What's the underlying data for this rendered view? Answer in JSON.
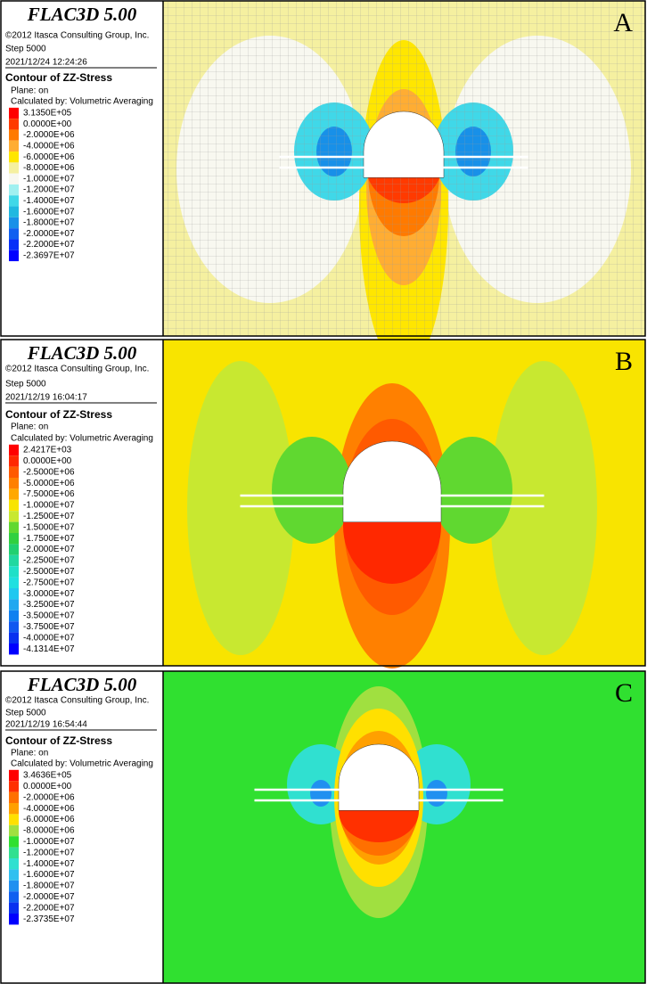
{
  "panels": [
    {
      "letter": "A",
      "title": "FLAC3D 5.00",
      "copyright": "©2012 Itasca Consulting Group, Inc.",
      "step": "Step 5000",
      "timestamp": "2021/12/24 12:24:26",
      "contour_title": "Contour of ZZ-Stress",
      "plane": "Plane: on",
      "calculated_by": "Calculated by: Volumetric Averaging",
      "legend": [
        {
          "label": "3.1350E+05",
          "color": "#ff0000"
        },
        {
          "label": "0.0000E+00",
          "color": "#ff3a00"
        },
        {
          "label": "-2.0000E+06",
          "color": "#ff7a00"
        },
        {
          "label": "-4.0000E+06",
          "color": "#ffad33"
        },
        {
          "label": "-6.0000E+06",
          "color": "#ffe600"
        },
        {
          "label": "-8.0000E+06",
          "color": "#f5f0a0"
        },
        {
          "label": "-1.0000E+07",
          "color": "#f8f8f0"
        },
        {
          "label": "-1.2000E+07",
          "color": "#a0f0f0"
        },
        {
          "label": "-1.4000E+07",
          "color": "#40d8e8"
        },
        {
          "label": "-1.6000E+07",
          "color": "#20b8e0"
        },
        {
          "label": "-1.8000E+07",
          "color": "#1890e8"
        },
        {
          "label": "-2.0000E+07",
          "color": "#1060f0"
        },
        {
          "label": "-2.2000E+07",
          "color": "#0830f8"
        },
        {
          "label": "-2.3697E+07",
          "color": "#0000ff"
        }
      ]
    },
    {
      "letter": "B",
      "title": "FLAC3D 5.00",
      "copyright": "©2012 Itasca Consulting Group, Inc.",
      "step": "Step 5000",
      "timestamp": "2021/12/19 16:04:17",
      "contour_title": "Contour of ZZ-Stress",
      "plane": "Plane: on",
      "calculated_by": "Calculated by: Volumetric Averaging",
      "legend": [
        {
          "label": "2.4217E+03",
          "color": "#ff0000"
        },
        {
          "label": "0.0000E+00",
          "color": "#ff2800"
        },
        {
          "label": "-2.5000E+06",
          "color": "#ff5a00"
        },
        {
          "label": "-5.0000E+06",
          "color": "#ff8000"
        },
        {
          "label": "-7.5000E+06",
          "color": "#ffa800"
        },
        {
          "label": "-1.0000E+07",
          "color": "#f8e400"
        },
        {
          "label": "-1.2500E+07",
          "color": "#c8e830"
        },
        {
          "label": "-1.5000E+07",
          "color": "#60d830"
        },
        {
          "label": "-1.7500E+07",
          "color": "#30d040"
        },
        {
          "label": "-2.0000E+07",
          "color": "#20d070"
        },
        {
          "label": "-2.2500E+07",
          "color": "#20d8a0"
        },
        {
          "label": "-2.5000E+07",
          "color": "#20e0c8"
        },
        {
          "label": "-2.7500E+07",
          "color": "#20e0e0"
        },
        {
          "label": "-3.0000E+07",
          "color": "#20c8f0"
        },
        {
          "label": "-3.2500E+07",
          "color": "#20a8f0"
        },
        {
          "label": "-3.5000E+07",
          "color": "#1080f0"
        },
        {
          "label": "-3.7500E+07",
          "color": "#1058f0"
        },
        {
          "label": "-4.0000E+07",
          "color": "#0830f0"
        },
        {
          "label": "-4.1314E+07",
          "color": "#0000ff"
        }
      ]
    },
    {
      "letter": "C",
      "title": "FLAC3D 5.00",
      "copyright": "©2012 Itasca Consulting Group, Inc.",
      "step": "Step 5000",
      "timestamp": "2021/12/19 16:54:44",
      "contour_title": "Contour of ZZ-Stress",
      "plane": "Plane: on",
      "calculated_by": "Calculated by: Volumetric Averaging",
      "legend": [
        {
          "label": "3.4636E+05",
          "color": "#ff0000"
        },
        {
          "label": "0.0000E+00",
          "color": "#ff3000"
        },
        {
          "label": "-2.0000E+06",
          "color": "#ff7000"
        },
        {
          "label": "-4.0000E+06",
          "color": "#ffa000"
        },
        {
          "label": "-6.0000E+06",
          "color": "#ffe000"
        },
        {
          "label": "-8.0000E+06",
          "color": "#a0e040"
        },
        {
          "label": "-1.0000E+07",
          "color": "#30e030"
        },
        {
          "label": "-1.2000E+07",
          "color": "#30e090"
        },
        {
          "label": "-1.4000E+07",
          "color": "#30e0d0"
        },
        {
          "label": "-1.6000E+07",
          "color": "#30c0f0"
        },
        {
          "label": "-1.8000E+07",
          "color": "#2090f0"
        },
        {
          "label": "-2.0000E+07",
          "color": "#1060f0"
        },
        {
          "label": "-2.2000E+07",
          "color": "#0830f0"
        },
        {
          "label": "-2.3735E+07",
          "color": "#0000ff"
        }
      ]
    }
  ]
}
